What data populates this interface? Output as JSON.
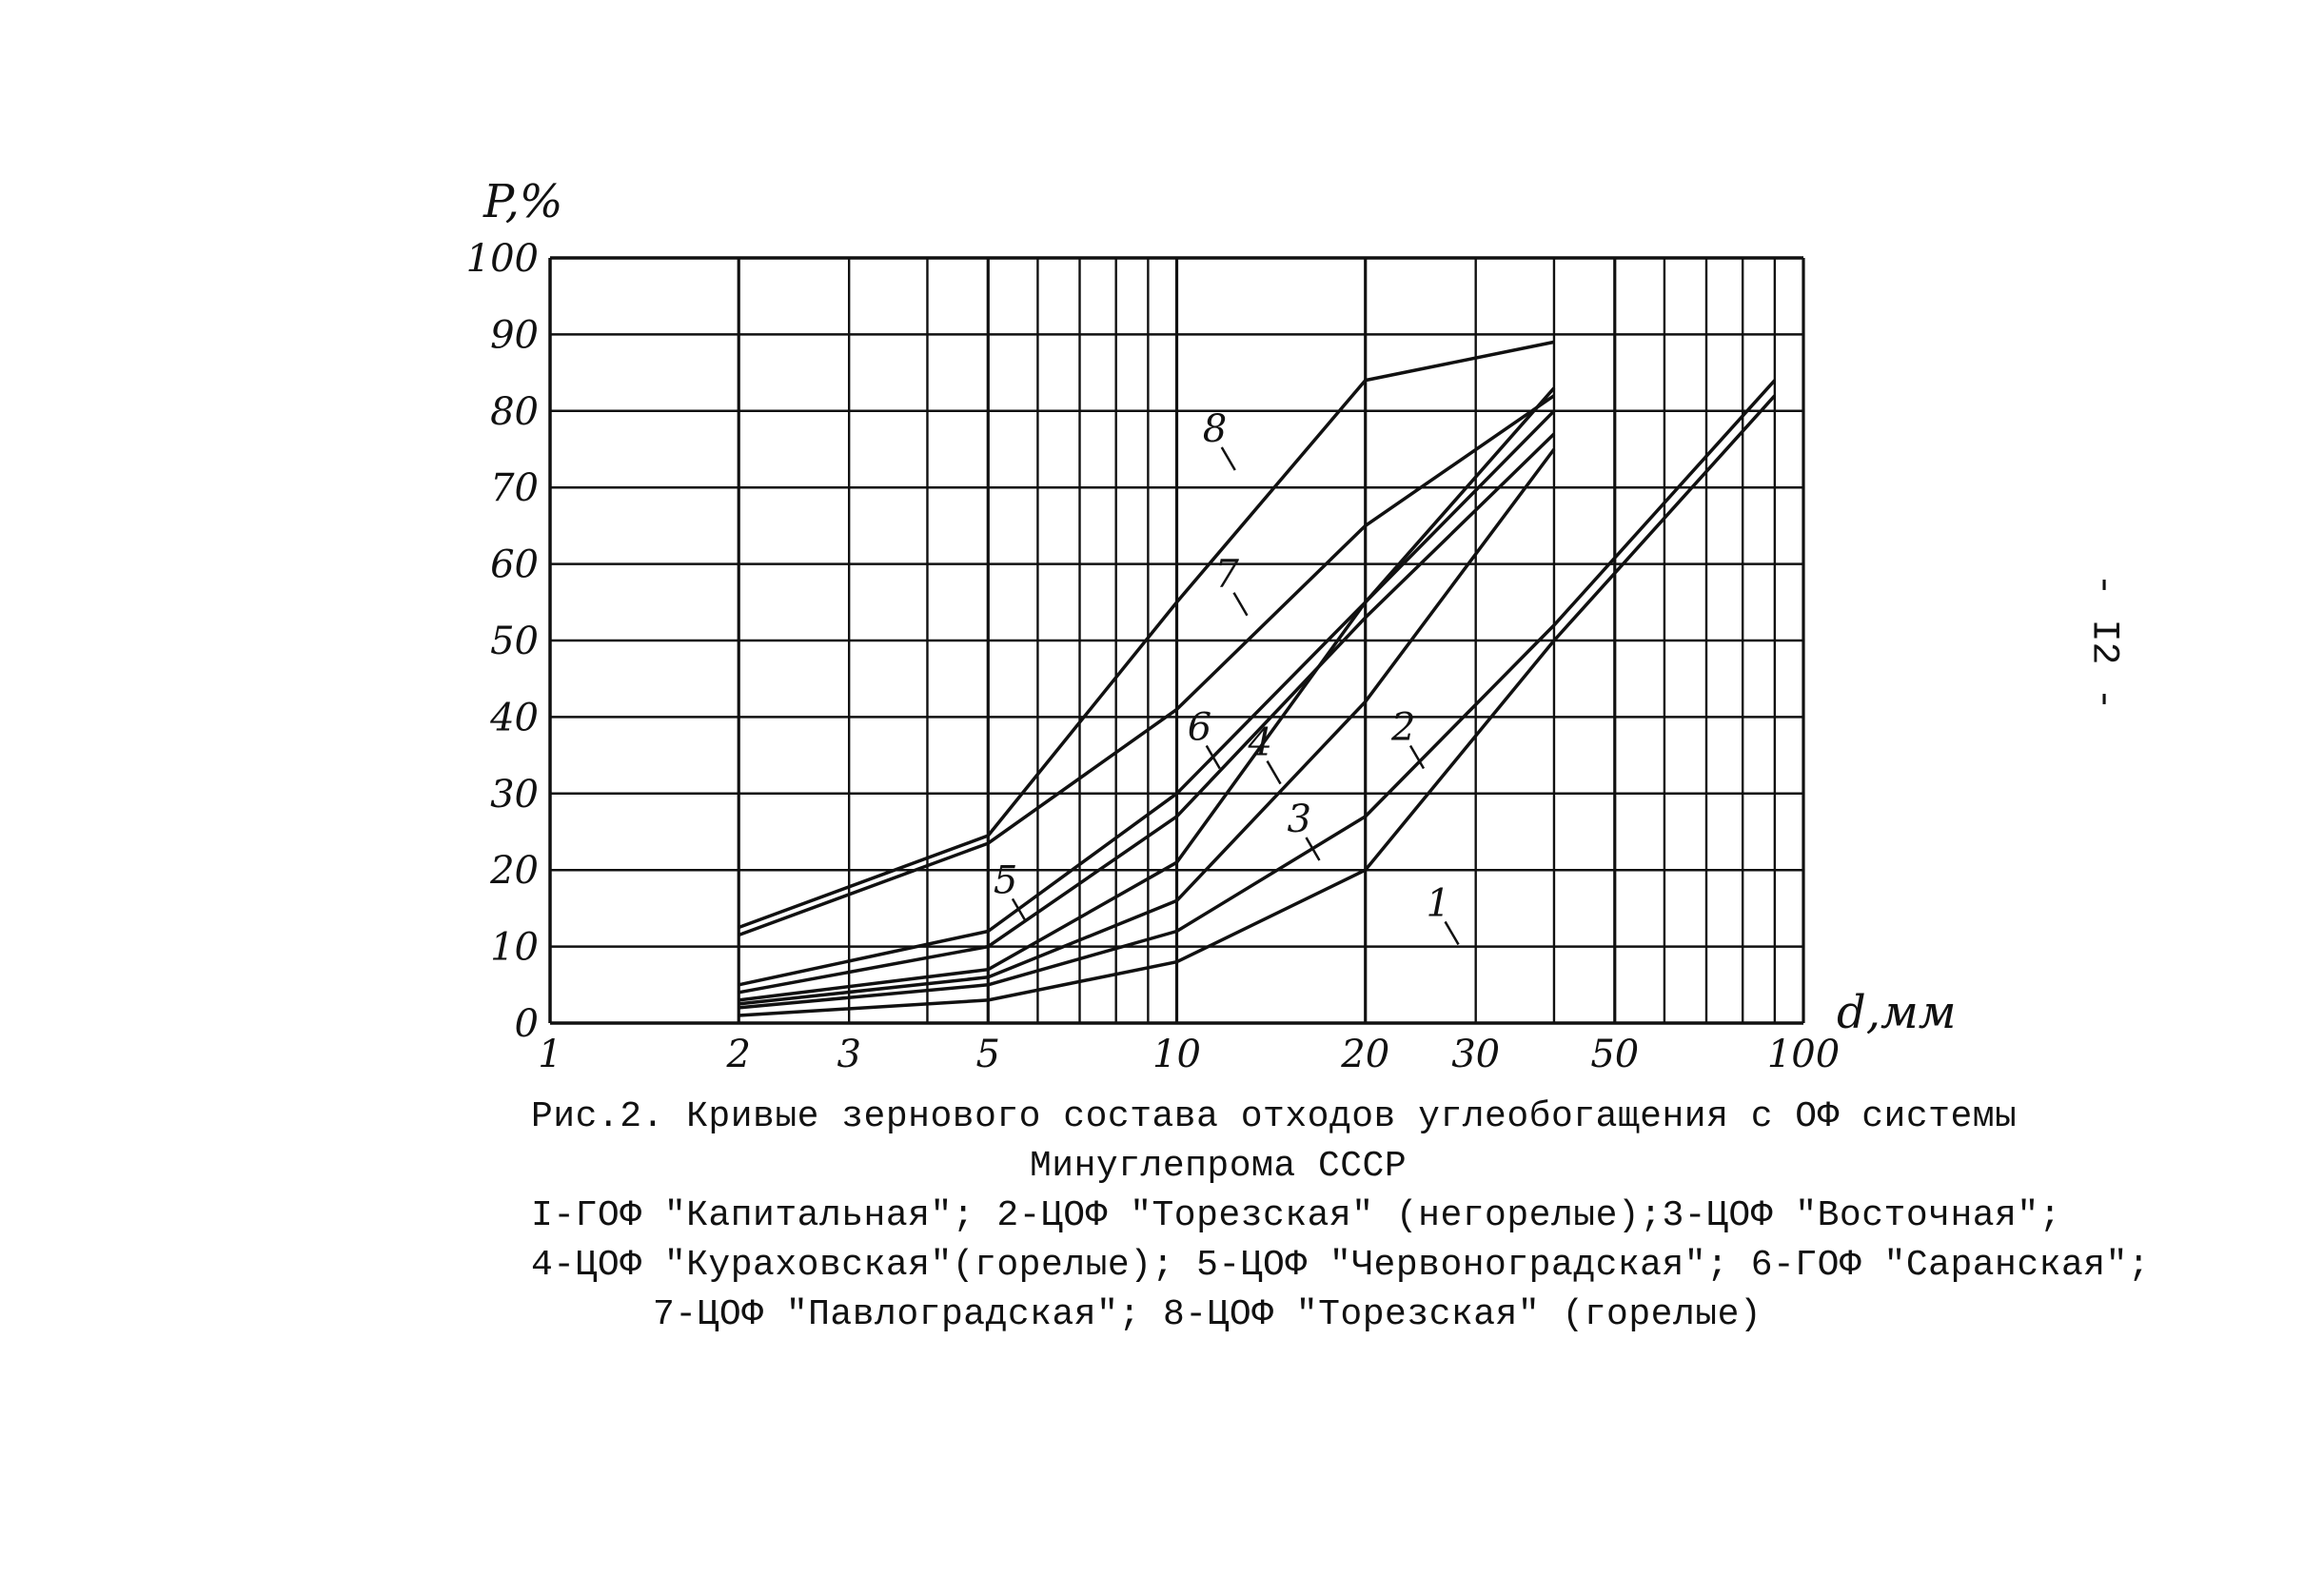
{
  "page_number": "- I2 -",
  "caption": {
    "title_line1": "Рис.2. Кривые зернового состава отходов углеобогащения с ОФ системы",
    "title_line2": "Минуглепрома СССР",
    "legend_line1": "I-ГОФ \"Капитальная\"; 2-ЦОФ \"Торезская\" (негорелые);3-ЦОФ \"Восточная\";",
    "legend_line2": "4-ЦОФ \"Кураховская\"(горелые); 5-ЦОФ \"Червоноградская\"; 6-ГОФ \"Саранская\";",
    "legend_line3": "7-ЦОФ \"Павлоградская\"; 8-ЦОФ \"Торезская\" (горелые)"
  },
  "chart_data": {
    "type": "line",
    "xscale": "log",
    "xlabel": "d,мм",
    "ylabel": "P,%",
    "xlim": [
      1,
      100
    ],
    "ylim": [
      0,
      100
    ],
    "grid": true,
    "x_ticks": [
      1,
      2,
      3,
      5,
      10,
      20,
      30,
      50,
      100
    ],
    "x_tick_labels": [
      "1",
      "2",
      "3",
      "5",
      "10",
      "20",
      "30",
      "50",
      "100"
    ],
    "x_gridlines": [
      2,
      3,
      4,
      5,
      6,
      7,
      8,
      9,
      10,
      20,
      30,
      40,
      50,
      60,
      70,
      80,
      90,
      100
    ],
    "y_ticks": [
      0,
      10,
      20,
      30,
      40,
      50,
      60,
      70,
      80,
      90,
      100
    ],
    "y_tick_labels": [
      "0",
      "10",
      "20",
      "30",
      "40",
      "50",
      "60",
      "70",
      "80",
      "90",
      "100"
    ],
    "series": [
      {
        "name": "1",
        "points": [
          [
            2,
            1
          ],
          [
            5,
            3
          ],
          [
            10,
            8
          ],
          [
            20,
            20
          ],
          [
            40,
            50
          ],
          [
            90,
            82
          ]
        ]
      },
      {
        "name": "2",
        "points": [
          [
            2,
            2
          ],
          [
            5,
            5
          ],
          [
            10,
            12
          ],
          [
            20,
            27
          ],
          [
            40,
            52
          ],
          [
            90,
            84
          ]
        ]
      },
      {
        "name": "3",
        "points": [
          [
            2,
            2.5
          ],
          [
            5,
            6
          ],
          [
            10,
            16
          ],
          [
            20,
            42
          ],
          [
            40,
            75
          ]
        ]
      },
      {
        "name": "4",
        "points": [
          [
            2,
            3
          ],
          [
            5,
            7
          ],
          [
            10,
            21
          ],
          [
            20,
            55
          ],
          [
            40,
            80
          ]
        ]
      },
      {
        "name": "5",
        "points": [
          [
            2,
            4
          ],
          [
            5,
            10
          ],
          [
            10,
            27
          ],
          [
            20,
            53
          ],
          [
            40,
            77
          ]
        ]
      },
      {
        "name": "6",
        "points": [
          [
            2,
            5
          ],
          [
            5,
            12
          ],
          [
            10,
            30
          ],
          [
            20,
            55
          ],
          [
            40,
            83
          ]
        ]
      },
      {
        "name": "7",
        "points": [
          [
            2,
            11.5
          ],
          [
            5,
            23.5
          ],
          [
            10,
            41
          ],
          [
            20,
            65
          ],
          [
            40,
            82
          ]
        ]
      },
      {
        "name": "8",
        "points": [
          [
            2,
            12.5
          ],
          [
            5,
            24.5
          ],
          [
            10,
            55
          ],
          [
            20,
            84
          ],
          [
            40,
            89
          ]
        ]
      }
    ],
    "annotations": [
      {
        "text": "1",
        "series": "1",
        "at": [
          25,
          14
        ]
      },
      {
        "text": "2",
        "series": "2",
        "at": [
          22,
          37
        ]
      },
      {
        "text": "3",
        "series": "3",
        "at": [
          15,
          25
        ]
      },
      {
        "text": "4",
        "series": "4",
        "at": [
          13,
          35
        ]
      },
      {
        "text": "5",
        "series": "5",
        "at": [
          5.1,
          17
        ]
      },
      {
        "text": "6",
        "series": "6",
        "at": [
          10.4,
          37
        ]
      },
      {
        "text": "7",
        "series": "7",
        "at": [
          11.5,
          57
        ]
      },
      {
        "text": "8",
        "series": "8",
        "at": [
          11.0,
          76
        ]
      }
    ]
  }
}
